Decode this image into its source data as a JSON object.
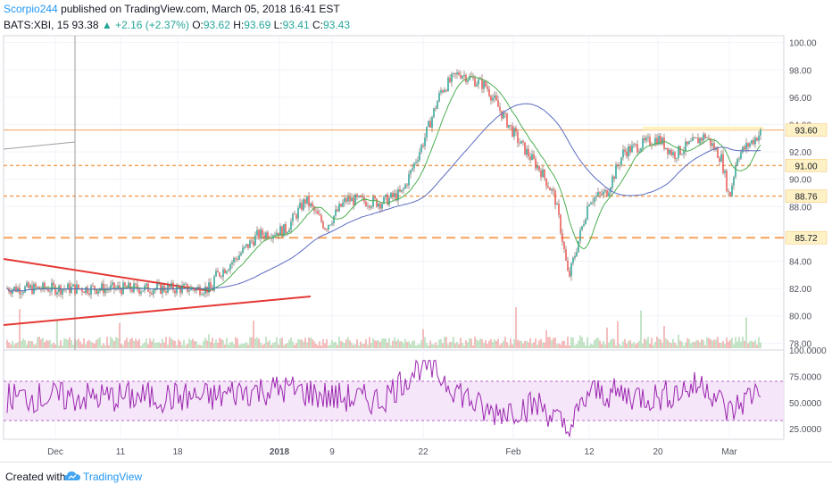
{
  "header": {
    "author": "Scorpio244",
    "published_text": "published on TradingView.com, March 05, 2018 16:41 EST",
    "symbol": "BATS:XBI, 15",
    "last": "93.38",
    "up_arrow": "▲",
    "change": "+2.16 (+2.37%)",
    "o_label": "O:",
    "o_val": "93.62",
    "h_label": "H:",
    "h_val": "93.69",
    "l_label": "L:",
    "l_val": "93.41",
    "c_label": "C:",
    "c_val": "93.43"
  },
  "footer": {
    "created_with": "Created with",
    "brand": "TradingView",
    "logo_icon": "tradingview-cloud-icon"
  },
  "colors": {
    "candle_up": "#26a69a",
    "candle_down": "#ef5350",
    "ma_fast": "#4caf50",
    "ma_slow": "#3f51b5",
    "rsi_line": "#9c27b0",
    "rsi_band": "#f3e0f7",
    "level_line": "#f5a35c",
    "trend_line": "#e53935",
    "price_tag": "#fdf1c5"
  },
  "chart_data": [
    {
      "type": "line",
      "title": "BATS:XBI, 15",
      "ylim": [
        77.5,
        100.5
      ],
      "y_ticks": [
        "100.00",
        "98.00",
        "96.00",
        "94.00",
        "92.00",
        "90.00",
        "88.00",
        "86.00",
        "84.00",
        "82.00",
        "80.00",
        "78.00"
      ],
      "x_ticks": [
        "Dec",
        "11",
        "18",
        "2018",
        "9",
        "22",
        "Feb",
        "12",
        "20",
        "Mar"
      ],
      "series": [
        {
          "name": "",
          "x": [
            "Nov 27",
            "Dec 1",
            "Dec 5",
            "Dec 8",
            "Dec 11",
            "Dec 14",
            "Dec 18",
            "Dec 21",
            "Dec 26",
            "Dec 29",
            "Jan 2",
            "Jan 5",
            "Jan 8",
            "Jan 11",
            "Jan 16",
            "Jan 19",
            "Jan 22",
            "Jan 24",
            "Jan 26",
            "Jan 29",
            "Jan 31",
            "Feb 2",
            "Feb 5",
            "Feb 7",
            "Feb 8",
            "Feb 9",
            "Feb 12",
            "Feb 14",
            "Feb 16",
            "Feb 20",
            "Feb 22",
            "Feb 26",
            "Feb 28",
            "Mar 1",
            "Mar 2",
            "Mar 5"
          ],
          "values": [
            82.0,
            82.5,
            84.3,
            80.0,
            84.5,
            83.5,
            81.5,
            81.8,
            84.2,
            85.9,
            86.3,
            88.5,
            86.5,
            88.5,
            88.3,
            89.0,
            92.7,
            96.5,
            97.8,
            96.8,
            94.5,
            92.6,
            90.6,
            88.7,
            86.0,
            82.7,
            88.5,
            89.0,
            92.0,
            93.0,
            91.8,
            93.2,
            91.5,
            88.6,
            91.7,
            93.4
          ]
        }
      ],
      "annotations": [
        {
          "label": "93.60",
          "value": 93.6
        },
        {
          "label": "91.00",
          "value": 91.0
        },
        {
          "label": "88.76",
          "value": 88.76
        },
        {
          "label": "85.72",
          "value": 85.72
        }
      ]
    },
    {
      "type": "line",
      "title": "",
      "ylim": [
        15,
        100
      ],
      "y_ticks": [
        "100.0000",
        "75.0000",
        "50.0000",
        "25.0000"
      ],
      "series": [
        {
          "name": "",
          "x": [
            "Nov 27",
            "Dec 4",
            "Dec 11",
            "Dec 18",
            "Dec 26",
            "Jan 2",
            "Jan 9",
            "Jan 16",
            "Jan 22",
            "Jan 29",
            "Feb 5",
            "Feb 9",
            "Feb 12",
            "Feb 20",
            "Feb 26",
            "Mar 1",
            "Mar 5"
          ],
          "values": [
            55,
            62,
            48,
            45,
            60,
            63,
            55,
            52,
            88,
            40,
            48,
            22,
            60,
            55,
            68,
            40,
            65
          ]
        }
      ]
    }
  ]
}
